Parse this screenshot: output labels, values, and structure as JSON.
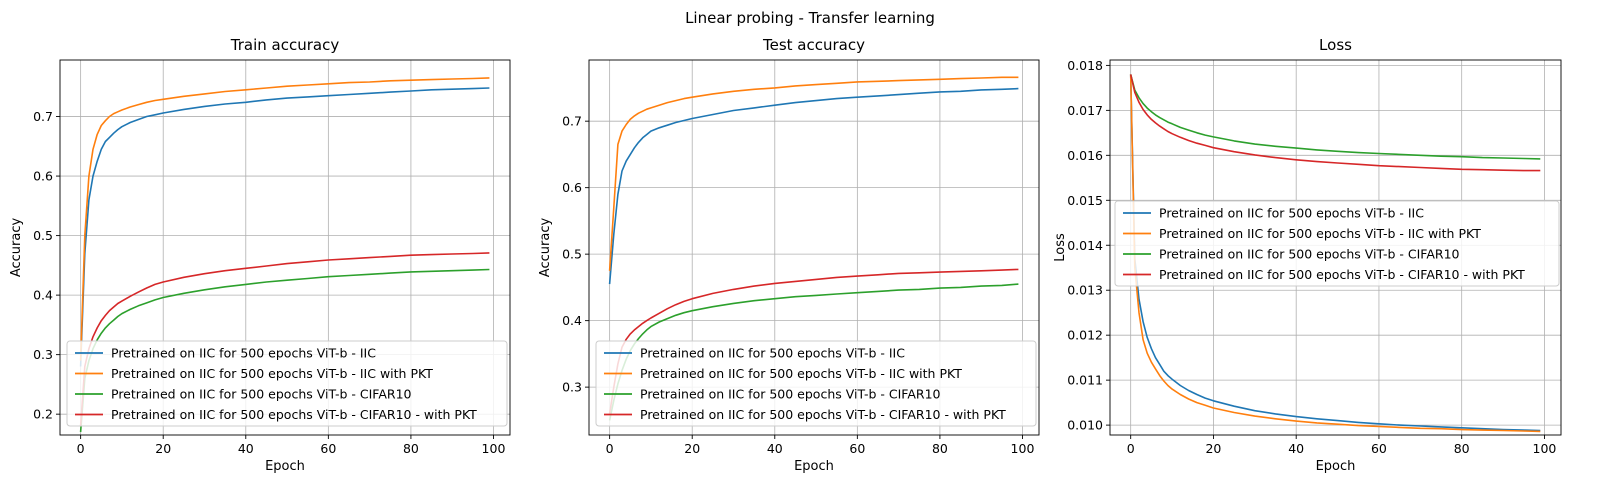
{
  "figure_title": "Linear probing - Transfer learning",
  "chart_data": [
    {
      "type": "line",
      "title": "Train accuracy",
      "xlabel": "Epoch",
      "ylabel": "Accuracy",
      "xlim": [
        -5,
        104
      ],
      "ylim": [
        0.165,
        0.795
      ],
      "xticks": [
        0,
        20,
        40,
        60,
        80,
        100
      ],
      "yticks": [
        0.2,
        0.3,
        0.4,
        0.5,
        0.6,
        0.7
      ],
      "ytick_labels": [
        "0.2",
        "0.3",
        "0.4",
        "0.5",
        "0.6",
        "0.7"
      ],
      "grid": true,
      "legend_placement": "lower-right",
      "series": [
        {
          "name": "Pretrained on IIC for 500 epochs ViT-b - IIC",
          "color": "#1f77b4",
          "x": [
            0,
            1,
            2,
            3,
            4,
            5,
            6,
            7,
            8,
            9,
            10,
            12,
            14,
            16,
            18,
            20,
            25,
            30,
            35,
            40,
            45,
            50,
            55,
            60,
            65,
            70,
            75,
            80,
            85,
            90,
            95,
            99
          ],
          "values": [
            0.28,
            0.47,
            0.56,
            0.6,
            0.625,
            0.645,
            0.658,
            0.665,
            0.672,
            0.678,
            0.683,
            0.69,
            0.695,
            0.7,
            0.703,
            0.706,
            0.712,
            0.717,
            0.721,
            0.724,
            0.728,
            0.731,
            0.733,
            0.735,
            0.737,
            0.739,
            0.741,
            0.743,
            0.745,
            0.746,
            0.747,
            0.748
          ]
        },
        {
          "name": "Pretrained on IIC for 500 epochs ViT-b - IIC with PKT",
          "color": "#ff7f0e",
          "x": [
            0,
            1,
            2,
            3,
            4,
            5,
            6,
            7,
            8,
            9,
            10,
            12,
            14,
            16,
            18,
            20,
            25,
            30,
            35,
            40,
            45,
            50,
            55,
            60,
            65,
            70,
            75,
            80,
            85,
            90,
            95,
            99
          ],
          "values": [
            0.29,
            0.5,
            0.6,
            0.645,
            0.67,
            0.685,
            0.693,
            0.7,
            0.705,
            0.708,
            0.711,
            0.716,
            0.72,
            0.724,
            0.727,
            0.729,
            0.734,
            0.738,
            0.742,
            0.745,
            0.748,
            0.751,
            0.753,
            0.755,
            0.757,
            0.758,
            0.76,
            0.761,
            0.762,
            0.763,
            0.764,
            0.765
          ]
        },
        {
          "name": "Pretrained on IIC for 500 epochs ViT-b - CIFAR10",
          "color": "#2ca02c",
          "x": [
            0,
            1,
            2,
            3,
            4,
            5,
            6,
            7,
            8,
            9,
            10,
            12,
            14,
            16,
            18,
            20,
            25,
            30,
            35,
            40,
            45,
            50,
            55,
            60,
            65,
            70,
            75,
            80,
            85,
            90,
            95,
            99
          ],
          "values": [
            0.17,
            0.26,
            0.29,
            0.31,
            0.325,
            0.336,
            0.345,
            0.352,
            0.358,
            0.364,
            0.369,
            0.376,
            0.382,
            0.387,
            0.392,
            0.396,
            0.403,
            0.409,
            0.414,
            0.418,
            0.422,
            0.425,
            0.428,
            0.431,
            0.433,
            0.435,
            0.437,
            0.439,
            0.44,
            0.441,
            0.442,
            0.443
          ]
        },
        {
          "name": "Pretrained on IIC for 500 epochs ViT-b - CIFAR10 - with PKT",
          "color": "#d62728",
          "x": [
            0,
            1,
            2,
            3,
            4,
            5,
            6,
            7,
            8,
            9,
            10,
            12,
            14,
            16,
            18,
            20,
            25,
            30,
            35,
            40,
            45,
            50,
            55,
            60,
            65,
            70,
            75,
            80,
            85,
            90,
            95,
            99
          ],
          "values": [
            0.18,
            0.28,
            0.31,
            0.33,
            0.345,
            0.357,
            0.366,
            0.374,
            0.38,
            0.386,
            0.39,
            0.398,
            0.405,
            0.412,
            0.418,
            0.422,
            0.43,
            0.436,
            0.441,
            0.445,
            0.449,
            0.453,
            0.456,
            0.459,
            0.461,
            0.463,
            0.465,
            0.467,
            0.468,
            0.469,
            0.47,
            0.471
          ]
        }
      ]
    },
    {
      "type": "line",
      "title": "Test accuracy",
      "xlabel": "Epoch",
      "ylabel": "Accuracy",
      "xlim": [
        -5,
        104
      ],
      "ylim": [
        0.228,
        0.792
      ],
      "xticks": [
        0,
        20,
        40,
        60,
        80,
        100
      ],
      "yticks": [
        0.3,
        0.4,
        0.5,
        0.6,
        0.7
      ],
      "ytick_labels": [
        "0.3",
        "0.4",
        "0.5",
        "0.6",
        "0.7"
      ],
      "grid": true,
      "legend_placement": "lower-right",
      "series": [
        {
          "name": "Pretrained on IIC for 500 epochs ViT-b - IIC",
          "color": "#1f77b4",
          "x": [
            0,
            1,
            2,
            3,
            4,
            5,
            6,
            7,
            8,
            9,
            10,
            12,
            14,
            16,
            18,
            20,
            25,
            30,
            35,
            40,
            45,
            50,
            55,
            60,
            65,
            70,
            75,
            80,
            85,
            90,
            95,
            99
          ],
          "values": [
            0.455,
            0.53,
            0.59,
            0.625,
            0.64,
            0.65,
            0.66,
            0.668,
            0.675,
            0.68,
            0.685,
            0.69,
            0.694,
            0.698,
            0.701,
            0.704,
            0.71,
            0.716,
            0.72,
            0.724,
            0.728,
            0.731,
            0.734,
            0.736,
            0.738,
            0.74,
            0.742,
            0.744,
            0.745,
            0.747,
            0.748,
            0.749
          ]
        },
        {
          "name": "Pretrained on IIC for 500 epochs ViT-b - IIC with PKT",
          "color": "#ff7f0e",
          "x": [
            0,
            1,
            2,
            3,
            4,
            5,
            6,
            7,
            8,
            9,
            10,
            12,
            14,
            16,
            18,
            20,
            25,
            30,
            35,
            40,
            45,
            50,
            55,
            60,
            65,
            70,
            75,
            80,
            85,
            90,
            95,
            99
          ],
          "values": [
            0.475,
            0.57,
            0.665,
            0.685,
            0.695,
            0.703,
            0.708,
            0.712,
            0.715,
            0.718,
            0.72,
            0.724,
            0.728,
            0.731,
            0.734,
            0.736,
            0.741,
            0.745,
            0.748,
            0.75,
            0.753,
            0.755,
            0.757,
            0.759,
            0.76,
            0.761,
            0.762,
            0.763,
            0.764,
            0.765,
            0.766,
            0.766
          ]
        },
        {
          "name": "Pretrained on IIC for 500 epochs ViT-b - CIFAR10",
          "color": "#2ca02c",
          "x": [
            0,
            1,
            2,
            3,
            4,
            5,
            6,
            7,
            8,
            9,
            10,
            12,
            14,
            16,
            18,
            20,
            25,
            30,
            35,
            40,
            45,
            50,
            55,
            60,
            65,
            70,
            75,
            80,
            85,
            90,
            95,
            99
          ],
          "values": [
            0.25,
            0.28,
            0.305,
            0.325,
            0.342,
            0.355,
            0.365,
            0.373,
            0.38,
            0.386,
            0.391,
            0.398,
            0.403,
            0.408,
            0.412,
            0.415,
            0.421,
            0.426,
            0.43,
            0.433,
            0.436,
            0.438,
            0.44,
            0.442,
            0.444,
            0.446,
            0.447,
            0.449,
            0.45,
            0.452,
            0.453,
            0.455
          ]
        },
        {
          "name": "Pretrained on IIC for 500 epochs ViT-b - CIFAR10 - with PKT",
          "color": "#d62728",
          "x": [
            0,
            1,
            2,
            3,
            4,
            5,
            6,
            7,
            8,
            9,
            10,
            12,
            14,
            16,
            18,
            20,
            25,
            30,
            35,
            40,
            45,
            50,
            55,
            60,
            65,
            70,
            75,
            80,
            85,
            90,
            95,
            99
          ],
          "values": [
            0.26,
            0.3,
            0.335,
            0.36,
            0.372,
            0.38,
            0.386,
            0.391,
            0.396,
            0.4,
            0.404,
            0.411,
            0.418,
            0.424,
            0.429,
            0.433,
            0.441,
            0.447,
            0.452,
            0.456,
            0.459,
            0.462,
            0.465,
            0.467,
            0.469,
            0.471,
            0.472,
            0.473,
            0.474,
            0.475,
            0.476,
            0.477
          ]
        }
      ]
    },
    {
      "type": "line",
      "title": "Loss",
      "xlabel": "Epoch",
      "ylabel": "Loss",
      "xlim": [
        -5,
        104
      ],
      "ylim": [
        0.00978,
        0.01812
      ],
      "xticks": [
        0,
        20,
        40,
        60,
        80,
        100
      ],
      "yticks": [
        0.01,
        0.011,
        0.012,
        0.013,
        0.014,
        0.015,
        0.016,
        0.017,
        0.018
      ],
      "ytick_labels": [
        "0.010",
        "0.011",
        "0.012",
        "0.013",
        "0.014",
        "0.015",
        "0.016",
        "0.017",
        "0.018"
      ],
      "grid": true,
      "legend_placement": "center-right",
      "series": [
        {
          "name": "Pretrained on IIC for 500 epochs ViT-b - IIC",
          "color": "#1f77b4",
          "x": [
            0,
            1,
            2,
            3,
            4,
            5,
            6,
            7,
            8,
            9,
            10,
            12,
            14,
            16,
            18,
            20,
            25,
            30,
            35,
            40,
            45,
            50,
            55,
            60,
            65,
            70,
            75,
            80,
            85,
            90,
            95,
            99
          ],
          "values": [
            0.0178,
            0.0137,
            0.0128,
            0.0123,
            0.01195,
            0.0117,
            0.0115,
            0.01135,
            0.0112,
            0.0111,
            0.01102,
            0.01088,
            0.01077,
            0.01068,
            0.0106,
            0.01054,
            0.01042,
            0.01032,
            0.01025,
            0.01019,
            0.01014,
            0.0101,
            0.01006,
            0.01003,
            0.01,
            0.00998,
            0.00996,
            0.00994,
            0.00992,
            0.0099,
            0.00989,
            0.00988
          ]
        },
        {
          "name": "Pretrained on IIC for 500 epochs ViT-b - IIC with PKT",
          "color": "#ff7f0e",
          "x": [
            0,
            1,
            2,
            3,
            4,
            5,
            6,
            7,
            8,
            9,
            10,
            12,
            14,
            16,
            18,
            20,
            25,
            30,
            35,
            40,
            45,
            50,
            55,
            60,
            65,
            70,
            75,
            80,
            85,
            90,
            95,
            99
          ],
          "values": [
            0.0178,
            0.0135,
            0.0125,
            0.0119,
            0.0116,
            0.0114,
            0.01125,
            0.0111,
            0.01098,
            0.01088,
            0.0108,
            0.01068,
            0.01058,
            0.0105,
            0.01044,
            0.01038,
            0.01028,
            0.0102,
            0.01014,
            0.01009,
            0.01005,
            0.01002,
            0.00999,
            0.00997,
            0.00995,
            0.00993,
            0.00992,
            0.0099,
            0.00989,
            0.00988,
            0.00987,
            0.00986
          ]
        },
        {
          "name": "Pretrained on IIC for 500 epochs ViT-b - CIFAR10",
          "color": "#2ca02c",
          "x": [
            0,
            1,
            2,
            3,
            4,
            5,
            6,
            7,
            8,
            9,
            10,
            12,
            14,
            16,
            18,
            20,
            25,
            30,
            35,
            40,
            45,
            50,
            55,
            60,
            65,
            70,
            75,
            80,
            85,
            90,
            95,
            99
          ],
          "values": [
            0.0178,
            0.01745,
            0.01728,
            0.01715,
            0.01705,
            0.01697,
            0.0169,
            0.01684,
            0.01679,
            0.01674,
            0.0167,
            0.01662,
            0.01656,
            0.0165,
            0.01645,
            0.01641,
            0.01632,
            0.01625,
            0.0162,
            0.01616,
            0.01612,
            0.01609,
            0.01606,
            0.01604,
            0.01602,
            0.016,
            0.01598,
            0.01597,
            0.01595,
            0.01594,
            0.01593,
            0.01592
          ]
        },
        {
          "name": "Pretrained on IIC for 500 epochs ViT-b - CIFAR10 - with PKT",
          "color": "#d62728",
          "x": [
            0,
            1,
            2,
            3,
            4,
            5,
            6,
            7,
            8,
            9,
            10,
            12,
            14,
            16,
            18,
            20,
            25,
            30,
            35,
            40,
            45,
            50,
            55,
            60,
            65,
            70,
            75,
            80,
            85,
            90,
            95,
            99
          ],
          "values": [
            0.0178,
            0.0174,
            0.01718,
            0.01702,
            0.0169,
            0.0168,
            0.01672,
            0.01665,
            0.01659,
            0.01653,
            0.01648,
            0.0164,
            0.01633,
            0.01627,
            0.01622,
            0.01617,
            0.01608,
            0.01601,
            0.01595,
            0.0159,
            0.01586,
            0.01583,
            0.0158,
            0.01577,
            0.01575,
            0.01573,
            0.01571,
            0.01569,
            0.01568,
            0.01567,
            0.01566,
            0.01566
          ]
        }
      ]
    }
  ]
}
